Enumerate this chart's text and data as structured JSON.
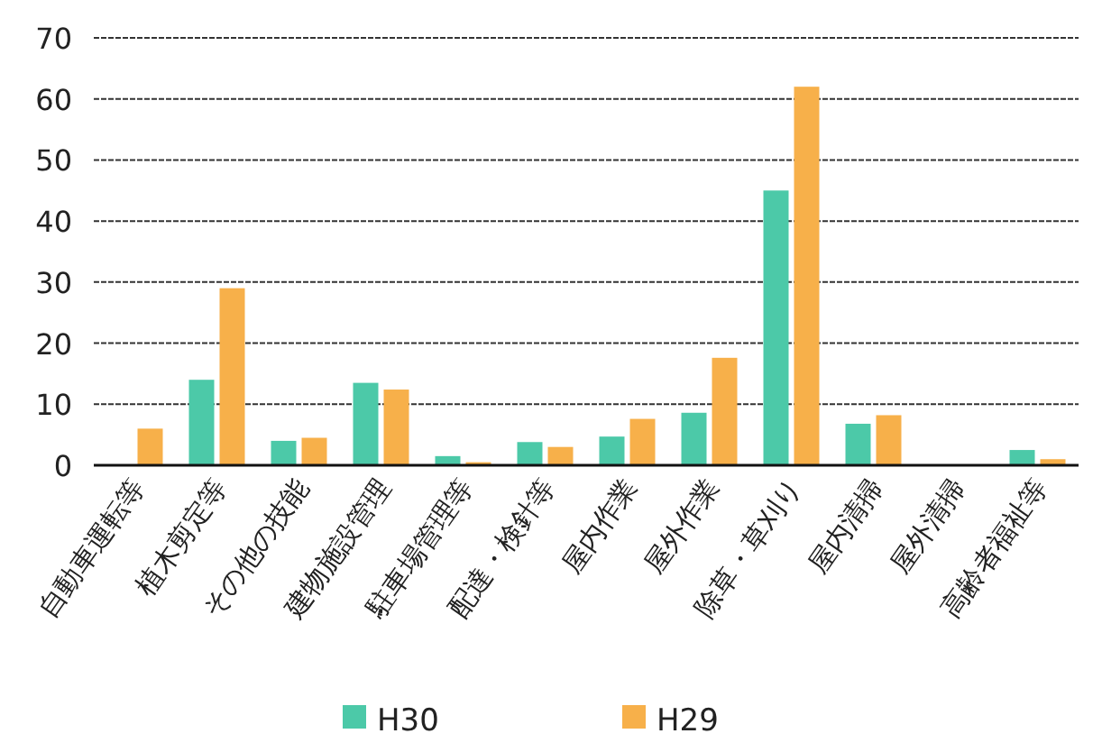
{
  "chart_data": {
    "type": "bar",
    "categories": [
      "自動車運転等",
      "植木剪定等",
      "その他の技能",
      "建物施設管理",
      "駐車場管理等",
      "配達・検針等",
      "屋内作業",
      "屋外作業",
      "除草・草刈り",
      "屋内清掃",
      "屋外清掃",
      "高齢者福祉等"
    ],
    "series": [
      {
        "name": "H30",
        "color": "#4cc9a8",
        "values": [
          0,
          14,
          4,
          13.5,
          1.5,
          3.8,
          4.7,
          8.6,
          45,
          6.8,
          0,
          2.5
        ]
      },
      {
        "name": "H29",
        "color": "#f7b04a",
        "values": [
          6,
          29,
          4.5,
          12.4,
          0.5,
          3,
          7.6,
          17.6,
          62,
          8.2,
          0,
          1
        ]
      }
    ],
    "ylim": [
      0,
      70
    ],
    "yticks": [
      0,
      10,
      20,
      30,
      40,
      50,
      60,
      70
    ],
    "grid": "y",
    "legend": "bottom"
  }
}
